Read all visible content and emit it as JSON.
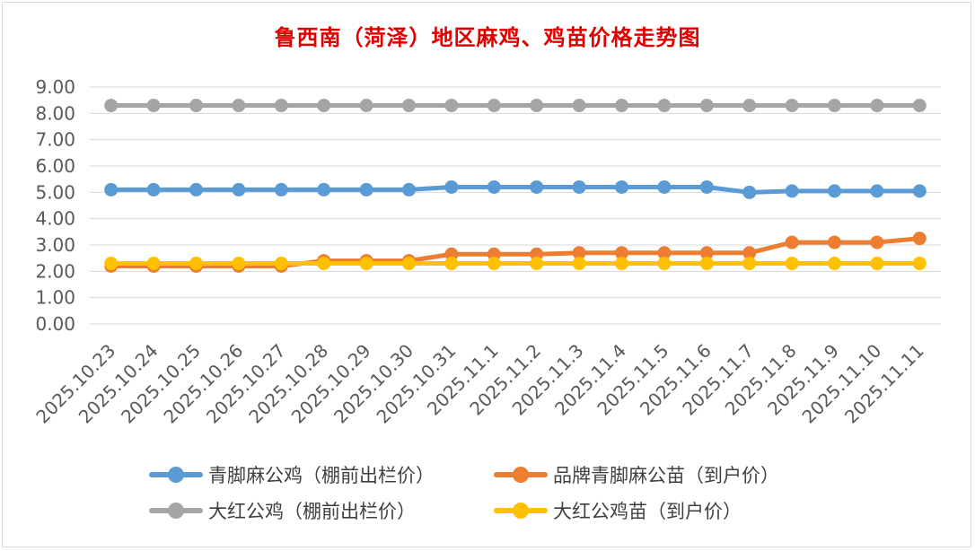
{
  "chart_data": {
    "type": "line",
    "title": "鲁西南（菏泽）地区麻鸡、鸡苗价格走势图",
    "xlabel": "",
    "ylabel": "",
    "ylim": [
      0,
      9
    ],
    "yticks": [
      "0.00",
      "1.00",
      "2.00",
      "3.00",
      "4.00",
      "5.00",
      "6.00",
      "7.00",
      "8.00",
      "9.00"
    ],
    "grid": true,
    "legend_position": "bottom",
    "categories": [
      "2025.10.23",
      "2025.10.24",
      "2025.10.25",
      "2025.10.26",
      "2025.10.27",
      "2025.10.28",
      "2025.10.29",
      "2025.10.30",
      "2025.10.31",
      "2025.11.1",
      "2025.11.2",
      "2025.11.3",
      "2025.11.4",
      "2025.11.5",
      "2025.11.6",
      "2025.11.7",
      "2025.11.8",
      "2025.11.9",
      "2025.11.10",
      "2025.11.11"
    ],
    "series": [
      {
        "name": "青脚麻公鸡（棚前出栏价）",
        "color": "#5b9bd5",
        "values": [
          5.1,
          5.1,
          5.1,
          5.1,
          5.1,
          5.1,
          5.1,
          5.1,
          5.2,
          5.2,
          5.2,
          5.2,
          5.2,
          5.2,
          5.2,
          5.0,
          5.05,
          5.05,
          5.05,
          5.05
        ]
      },
      {
        "name": "品牌青脚麻公苗（到户价）",
        "color": "#ed7d31",
        "values": [
          2.2,
          2.2,
          2.2,
          2.2,
          2.2,
          2.4,
          2.4,
          2.4,
          2.65,
          2.65,
          2.65,
          2.7,
          2.7,
          2.7,
          2.7,
          2.7,
          3.1,
          3.1,
          3.1,
          3.25
        ]
      },
      {
        "name": "大红公鸡（棚前出栏价）",
        "color": "#a5a5a5",
        "values": [
          8.3,
          8.3,
          8.3,
          8.3,
          8.3,
          8.3,
          8.3,
          8.3,
          8.3,
          8.3,
          8.3,
          8.3,
          8.3,
          8.3,
          8.3,
          8.3,
          8.3,
          8.3,
          8.3,
          8.3
        ]
      },
      {
        "name": "大红公鸡苗（到户价）",
        "color": "#ffc000",
        "values": [
          2.3,
          2.3,
          2.3,
          2.3,
          2.3,
          2.3,
          2.3,
          2.3,
          2.3,
          2.3,
          2.3,
          2.3,
          2.3,
          2.3,
          2.3,
          2.3,
          2.3,
          2.3,
          2.3,
          2.3
        ]
      }
    ]
  },
  "legend": [
    {
      "label": "青脚麻公鸡（棚前出栏价）",
      "color": "#5b9bd5"
    },
    {
      "label": "品牌青脚麻公苗（到户价）",
      "color": "#ed7d31"
    },
    {
      "label": "大红公鸡（棚前出栏价）",
      "color": "#a5a5a5"
    },
    {
      "label": "大红公鸡苗（到户价）",
      "color": "#ffc000"
    }
  ]
}
